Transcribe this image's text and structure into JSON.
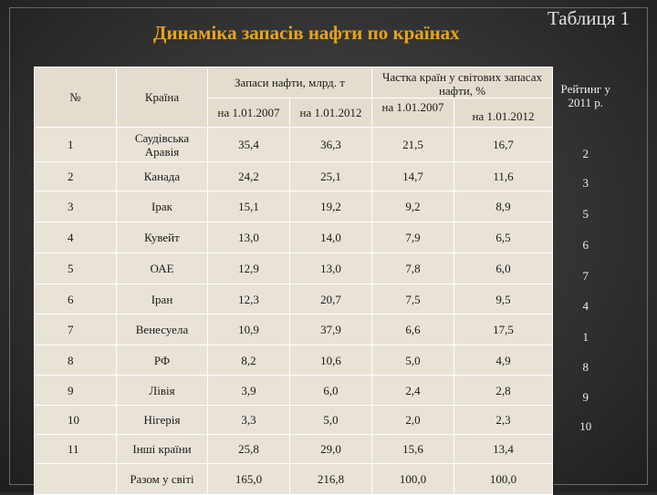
{
  "title": "Динаміка запасів нафти по країнах",
  "table_label": "Таблиця 1",
  "headers": {
    "number": "№",
    "country": "Країна",
    "reserves": "Запаси нафти, млрд. т",
    "share": "Частка країн у світових запасах нафти, %",
    "rating": "Рейтинг у 2011 р.",
    "date_2007": "на 1.01.2007",
    "date_2012": "на 1.01.2012"
  },
  "rows": [
    {
      "n": "1",
      "country": "Саудівська Аравія",
      "r2007": "35,4",
      "r2012": "36,3",
      "s2007": "21,5",
      "s2012": "16,7",
      "rank": "2"
    },
    {
      "n": "2",
      "country": "Канада",
      "r2007": "24,2",
      "r2012": "25,1",
      "s2007": "14,7",
      "s2012": "11,6",
      "rank": "3"
    },
    {
      "n": "3",
      "country": "Ірак",
      "r2007": "15,1",
      "r2012": "19,2",
      "s2007": "9,2",
      "s2012": "8,9",
      "rank": "5"
    },
    {
      "n": "4",
      "country": "Кувейт",
      "r2007": "13,0",
      "r2012": "14,0",
      "s2007": "7,9",
      "s2012": "6,5",
      "rank": "6"
    },
    {
      "n": "5",
      "country": "ОАЕ",
      "r2007": "12,9",
      "r2012": "13,0",
      "s2007": "7,8",
      "s2012": "6,0",
      "rank": "7"
    },
    {
      "n": "6",
      "country": "Іран",
      "r2007": "12,3",
      "r2012": "20,7",
      "s2007": "7,5",
      "s2012": "9,5",
      "rank": "4"
    },
    {
      "n": "7",
      "country": "Венесуела",
      "r2007": "10,9",
      "r2012": "37,9",
      "s2007": "6,6",
      "s2012": "17,5",
      "rank": "1"
    },
    {
      "n": "8",
      "country": "РФ",
      "r2007": "8,2",
      "r2012": "10,6",
      "s2007": "5,0",
      "s2012": "4,9",
      "rank": "8"
    },
    {
      "n": "9",
      "country": "Лівія",
      "r2007": "3,9",
      "r2012": "6,0",
      "s2007": "2,4",
      "s2012": "2,8",
      "rank": "9"
    },
    {
      "n": "10",
      "country": "Нігерія",
      "r2007": "3,3",
      "r2012": "5,0",
      "s2007": "2,0",
      "s2012": "2,3",
      "rank": "10"
    },
    {
      "n": "11",
      "country": "Інші країни",
      "r2007": "25,8",
      "r2012": "29,0",
      "s2007": "15,6",
      "s2012": "13,4",
      "rank": ""
    }
  ],
  "total": {
    "label": "Разом у світі",
    "r2007": "165,0",
    "r2012": "216,8",
    "s2007": "100,0",
    "s2012": "100,0"
  }
}
